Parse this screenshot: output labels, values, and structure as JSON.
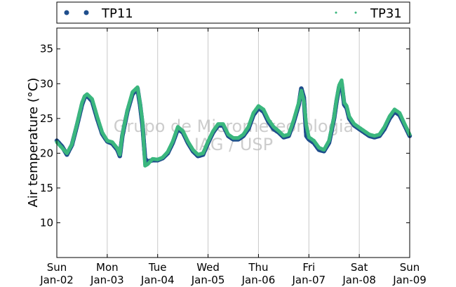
{
  "chart_data": {
    "type": "scatter",
    "ylabel": "Air temperature (°C)",
    "xlabel": "",
    "ylim": [
      5,
      38
    ],
    "xlim": [
      0,
      7
    ],
    "yticks": [
      10,
      15,
      20,
      25,
      30,
      35
    ],
    "xticks": [
      {
        "day": "Sun",
        "date": "Jan-02"
      },
      {
        "day": "Mon",
        "date": "Jan-03"
      },
      {
        "day": "Tue",
        "date": "Jan-04"
      },
      {
        "day": "Wed",
        "date": "Jan-05"
      },
      {
        "day": "Thu",
        "date": "Jan-06"
      },
      {
        "day": "Fri",
        "date": "Jan-07"
      },
      {
        "day": "Sat",
        "date": "Jan-08"
      },
      {
        "day": "Sun",
        "date": "Jan-09"
      }
    ],
    "grid": "vertical",
    "legend_placement": "top",
    "watermark": [
      "Grupo de Micrometeorologia",
      "IAG / USP"
    ],
    "series": [
      {
        "name": "TP11",
        "color": "#1f4e8c",
        "marker": "large-dot",
        "points": [
          [
            0.0,
            21.8
          ],
          [
            0.1,
            21.0
          ],
          [
            0.2,
            19.8
          ],
          [
            0.3,
            21.2
          ],
          [
            0.4,
            24.0
          ],
          [
            0.5,
            27.0
          ],
          [
            0.55,
            28.0
          ],
          [
            0.6,
            28.3
          ],
          [
            0.7,
            27.5
          ],
          [
            0.8,
            25.0
          ],
          [
            0.9,
            22.8
          ],
          [
            1.0,
            21.7
          ],
          [
            1.1,
            21.4
          ],
          [
            1.2,
            20.5
          ],
          [
            1.25,
            19.6
          ],
          [
            1.3,
            22.5
          ],
          [
            1.4,
            26.0
          ],
          [
            1.5,
            28.5
          ],
          [
            1.6,
            29.3
          ],
          [
            1.65,
            27.0
          ],
          [
            1.7,
            24.0
          ],
          [
            1.75,
            19.2
          ],
          [
            1.8,
            18.8
          ],
          [
            1.9,
            19.0
          ],
          [
            2.0,
            19.0
          ],
          [
            2.1,
            19.3
          ],
          [
            2.2,
            20.0
          ],
          [
            2.3,
            21.5
          ],
          [
            2.4,
            23.5
          ],
          [
            2.5,
            23.0
          ],
          [
            2.6,
            21.5
          ],
          [
            2.7,
            20.3
          ],
          [
            2.8,
            19.6
          ],
          [
            2.9,
            19.8
          ],
          [
            3.0,
            21.5
          ],
          [
            3.1,
            23.0
          ],
          [
            3.2,
            24.0
          ],
          [
            3.3,
            24.0
          ],
          [
            3.4,
            22.5
          ],
          [
            3.5,
            22.0
          ],
          [
            3.6,
            22.0
          ],
          [
            3.7,
            22.5
          ],
          [
            3.8,
            23.5
          ],
          [
            3.9,
            25.5
          ],
          [
            4.0,
            26.5
          ],
          [
            4.1,
            26.0
          ],
          [
            4.2,
            24.5
          ],
          [
            4.3,
            23.5
          ],
          [
            4.4,
            23.0
          ],
          [
            4.5,
            22.3
          ],
          [
            4.6,
            22.5
          ],
          [
            4.7,
            24.5
          ],
          [
            4.8,
            27.0
          ],
          [
            4.85,
            29.3
          ],
          [
            4.9,
            28.0
          ],
          [
            4.95,
            22.5
          ],
          [
            5.0,
            22.0
          ],
          [
            5.1,
            21.5
          ],
          [
            5.2,
            20.5
          ],
          [
            5.3,
            20.3
          ],
          [
            5.4,
            21.5
          ],
          [
            5.5,
            25.0
          ],
          [
            5.55,
            27.5
          ],
          [
            5.6,
            29.5
          ],
          [
            5.65,
            30.0
          ],
          [
            5.7,
            27.0
          ],
          [
            5.75,
            26.5
          ],
          [
            5.8,
            25.0
          ],
          [
            5.9,
            24.0
          ],
          [
            6.0,
            23.5
          ],
          [
            6.1,
            23.0
          ],
          [
            6.2,
            22.5
          ],
          [
            6.3,
            22.3
          ],
          [
            6.4,
            22.5
          ],
          [
            6.5,
            23.5
          ],
          [
            6.6,
            25.0
          ],
          [
            6.7,
            26.0
          ],
          [
            6.8,
            25.5
          ],
          [
            6.9,
            24.0
          ],
          [
            7.0,
            22.5
          ]
        ]
      },
      {
        "name": "TP31",
        "color": "#3bb77e",
        "marker": "small-dot",
        "points": [
          [
            0.0,
            21.6
          ],
          [
            0.1,
            20.8
          ],
          [
            0.2,
            20.0
          ],
          [
            0.3,
            21.3
          ],
          [
            0.4,
            24.2
          ],
          [
            0.5,
            27.3
          ],
          [
            0.55,
            28.2
          ],
          [
            0.6,
            28.5
          ],
          [
            0.7,
            27.8
          ],
          [
            0.8,
            25.3
          ],
          [
            0.9,
            23.0
          ],
          [
            1.0,
            21.8
          ],
          [
            1.1,
            21.6
          ],
          [
            1.2,
            20.7
          ],
          [
            1.25,
            19.8
          ],
          [
            1.3,
            22.7
          ],
          [
            1.4,
            26.2
          ],
          [
            1.5,
            28.8
          ],
          [
            1.6,
            29.5
          ],
          [
            1.65,
            27.3
          ],
          [
            1.7,
            24.5
          ],
          [
            1.75,
            18.2
          ],
          [
            1.8,
            18.4
          ],
          [
            1.9,
            19.2
          ],
          [
            2.0,
            19.1
          ],
          [
            2.1,
            19.4
          ],
          [
            2.2,
            20.2
          ],
          [
            2.3,
            21.7
          ],
          [
            2.4,
            23.8
          ],
          [
            2.5,
            23.2
          ],
          [
            2.6,
            21.7
          ],
          [
            2.7,
            20.5
          ],
          [
            2.8,
            19.8
          ],
          [
            2.9,
            20.0
          ],
          [
            3.0,
            21.7
          ],
          [
            3.1,
            23.2
          ],
          [
            3.2,
            24.2
          ],
          [
            3.3,
            24.2
          ],
          [
            3.4,
            22.7
          ],
          [
            3.5,
            22.2
          ],
          [
            3.6,
            22.2
          ],
          [
            3.7,
            22.7
          ],
          [
            3.8,
            23.8
          ],
          [
            3.9,
            25.8
          ],
          [
            4.0,
            26.8
          ],
          [
            4.1,
            26.3
          ],
          [
            4.2,
            24.8
          ],
          [
            4.3,
            23.8
          ],
          [
            4.4,
            23.2
          ],
          [
            4.5,
            22.5
          ],
          [
            4.6,
            22.7
          ],
          [
            4.7,
            24.8
          ],
          [
            4.8,
            27.3
          ],
          [
            4.85,
            29.0
          ],
          [
            4.9,
            27.5
          ],
          [
            4.95,
            24.0
          ],
          [
            5.0,
            22.3
          ],
          [
            5.1,
            21.8
          ],
          [
            5.2,
            20.8
          ],
          [
            5.3,
            20.5
          ],
          [
            5.4,
            21.8
          ],
          [
            5.5,
            25.2
          ],
          [
            5.55,
            27.8
          ],
          [
            5.6,
            29.8
          ],
          [
            5.65,
            30.5
          ],
          [
            5.7,
            27.3
          ],
          [
            5.75,
            26.8
          ],
          [
            5.8,
            25.3
          ],
          [
            5.9,
            24.2
          ],
          [
            6.0,
            23.7
          ],
          [
            6.1,
            23.2
          ],
          [
            6.2,
            22.7
          ],
          [
            6.3,
            22.5
          ],
          [
            6.4,
            22.7
          ],
          [
            6.5,
            23.8
          ],
          [
            6.6,
            25.3
          ],
          [
            6.7,
            26.3
          ],
          [
            6.8,
            25.8
          ],
          [
            6.9,
            24.2
          ],
          [
            7.0,
            22.7
          ]
        ]
      }
    ]
  }
}
